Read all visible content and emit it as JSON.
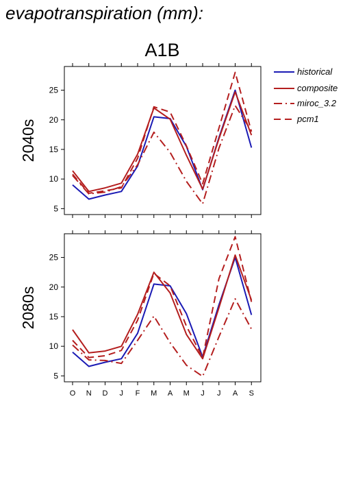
{
  "page_title": "evapotranspiration (mm):",
  "scenario": "A1B",
  "legend": {
    "historical": "historical",
    "composite": "composite",
    "miroc": "miroc_3.2",
    "pcm1": "pcm1"
  },
  "colors": {
    "historical": "#1a1ab4",
    "models": "#b41e1e"
  },
  "chart_data": {
    "type": "line",
    "categories": [
      "O",
      "N",
      "D",
      "J",
      "F",
      "M",
      "A",
      "M",
      "J",
      "J",
      "A",
      "S"
    ],
    "yticks": [
      5,
      10,
      15,
      20,
      25
    ],
    "ylim": [
      4,
      29
    ],
    "legend_position": "right",
    "panels": [
      {
        "label": "2040s",
        "series": [
          {
            "name": "historical",
            "style": "solid",
            "color": "#1a1ab4",
            "values": [
              9.0,
              6.6,
              7.3,
              7.9,
              12.2,
              20.5,
              20.2,
              15.5,
              8.2,
              17.0,
              25.0,
              15.3
            ]
          },
          {
            "name": "composite",
            "style": "solid",
            "color": "#b41e1e",
            "values": [
              11.4,
              7.9,
              8.5,
              9.3,
              14.2,
              22.0,
              20.1,
              14.0,
              8.3,
              16.8,
              24.7,
              17.4
            ]
          },
          {
            "name": "miroc_3.2",
            "style": "dashdot",
            "color": "#b41e1e",
            "values": [
              10.6,
              7.5,
              7.8,
              8.7,
              12.4,
              17.9,
              14.5,
              9.6,
              5.8,
              15.2,
              22.4,
              18.1
            ]
          },
          {
            "name": "pcm1",
            "style": "dash",
            "color": "#b41e1e",
            "values": [
              10.8,
              7.6,
              8.0,
              8.5,
              13.5,
              22.2,
              21.3,
              15.6,
              9.2,
              18.6,
              28.0,
              18.0
            ]
          }
        ]
      },
      {
        "label": "2080s",
        "series": [
          {
            "name": "historical",
            "style": "solid",
            "color": "#1a1ab4",
            "values": [
              9.0,
              6.6,
              7.3,
              7.9,
              12.2,
              20.5,
              20.2,
              15.5,
              8.2,
              17.0,
              25.0,
              15.3
            ]
          },
          {
            "name": "composite",
            "style": "solid",
            "color": "#b41e1e",
            "values": [
              12.8,
              8.9,
              9.2,
              10.0,
              15.4,
              22.5,
              19.0,
              12.0,
              7.9,
              16.5,
              25.4,
              17.8
            ]
          },
          {
            "name": "miroc_3.2",
            "style": "dashdot",
            "color": "#b41e1e",
            "values": [
              10.2,
              7.7,
              7.6,
              7.1,
              11.0,
              15.1,
              10.6,
              6.8,
              4.9,
              11.6,
              18.0,
              12.9
            ]
          },
          {
            "name": "pcm1",
            "style": "dash",
            "color": "#b41e1e",
            "values": [
              11.0,
              8.1,
              8.4,
              9.3,
              14.4,
              22.3,
              20.2,
              13.4,
              8.1,
              21.4,
              28.5,
              17.5
            ]
          }
        ]
      }
    ]
  }
}
